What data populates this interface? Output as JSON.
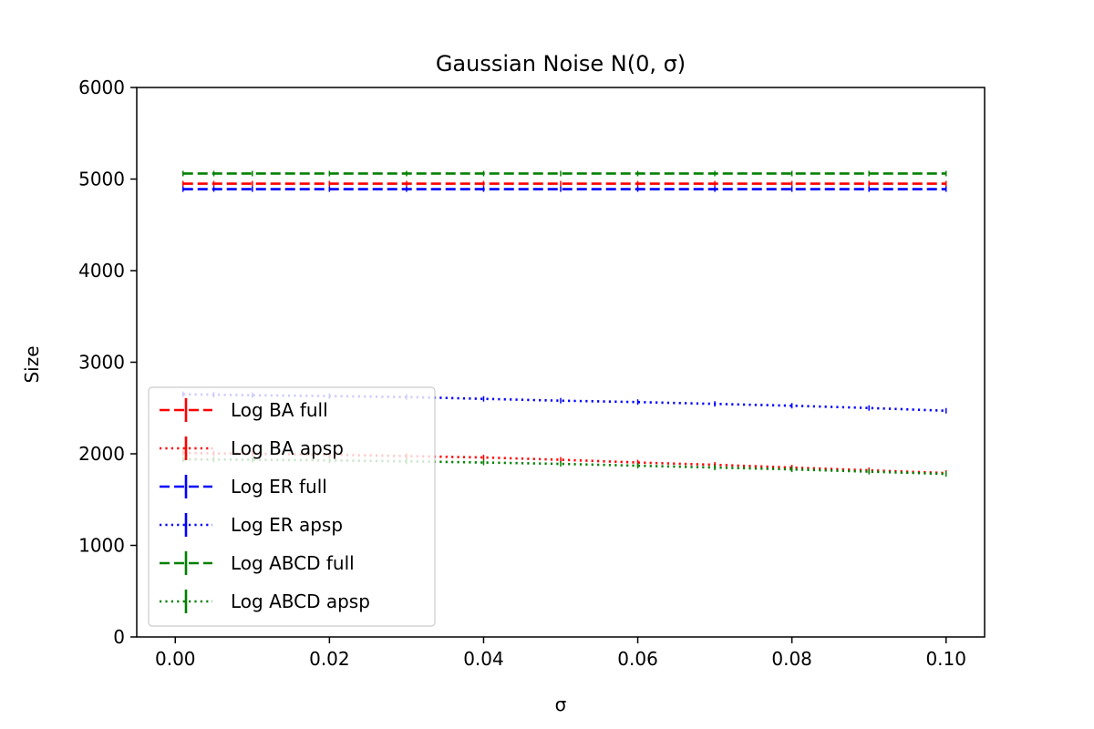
{
  "chart_data": {
    "type": "line",
    "title": "Gaussian Noise N(0, σ)",
    "xlabel": "σ",
    "ylabel": "Size",
    "xlim": [
      -0.005,
      0.105
    ],
    "ylim": [
      0,
      6000
    ],
    "xticks": [
      0.0,
      0.02,
      0.04,
      0.06,
      0.08,
      0.1
    ],
    "xtick_labels": [
      "0.00",
      "0.02",
      "0.04",
      "0.06",
      "0.08",
      "0.10"
    ],
    "yticks": [
      0,
      1000,
      2000,
      3000,
      4000,
      5000,
      6000
    ],
    "ytick_labels": [
      "0",
      "1000",
      "2000",
      "3000",
      "4000",
      "5000",
      "6000"
    ],
    "grid": false,
    "legend_position": "lower-left",
    "x": [
      0.001,
      0.005,
      0.01,
      0.02,
      0.03,
      0.04,
      0.05,
      0.06,
      0.07,
      0.08,
      0.09,
      0.1
    ],
    "series": [
      {
        "name": "Log BA full",
        "color": "#ff0000",
        "style": "dashed",
        "values": [
          4950,
          4950,
          4950,
          4950,
          4950,
          4950,
          4950,
          4950,
          4950,
          4950,
          4950,
          4950
        ]
      },
      {
        "name": "Log BA apsp",
        "color": "#ff0000",
        "style": "dotted",
        "values": [
          2010,
          2005,
          2000,
          1990,
          1975,
          1960,
          1935,
          1905,
          1880,
          1850,
          1820,
          1790
        ]
      },
      {
        "name": "Log ER full",
        "color": "#0000ff",
        "style": "dashed",
        "values": [
          4890,
          4890,
          4890,
          4890,
          4890,
          4890,
          4890,
          4890,
          4890,
          4890,
          4890,
          4890
        ]
      },
      {
        "name": "Log ER apsp",
        "color": "#0000ff",
        "style": "dotted",
        "values": [
          2650,
          2645,
          2640,
          2630,
          2620,
          2600,
          2580,
          2565,
          2545,
          2525,
          2500,
          2470
        ]
      },
      {
        "name": "Log ABCD full",
        "color": "#008000",
        "style": "dashed",
        "values": [
          5060,
          5060,
          5060,
          5060,
          5060,
          5060,
          5060,
          5060,
          5060,
          5060,
          5060,
          5060
        ]
      },
      {
        "name": "Log ABCD apsp",
        "color": "#008000",
        "style": "dotted",
        "values": [
          1940,
          1938,
          1935,
          1928,
          1918,
          1905,
          1890,
          1870,
          1850,
          1830,
          1805,
          1780
        ]
      }
    ]
  }
}
